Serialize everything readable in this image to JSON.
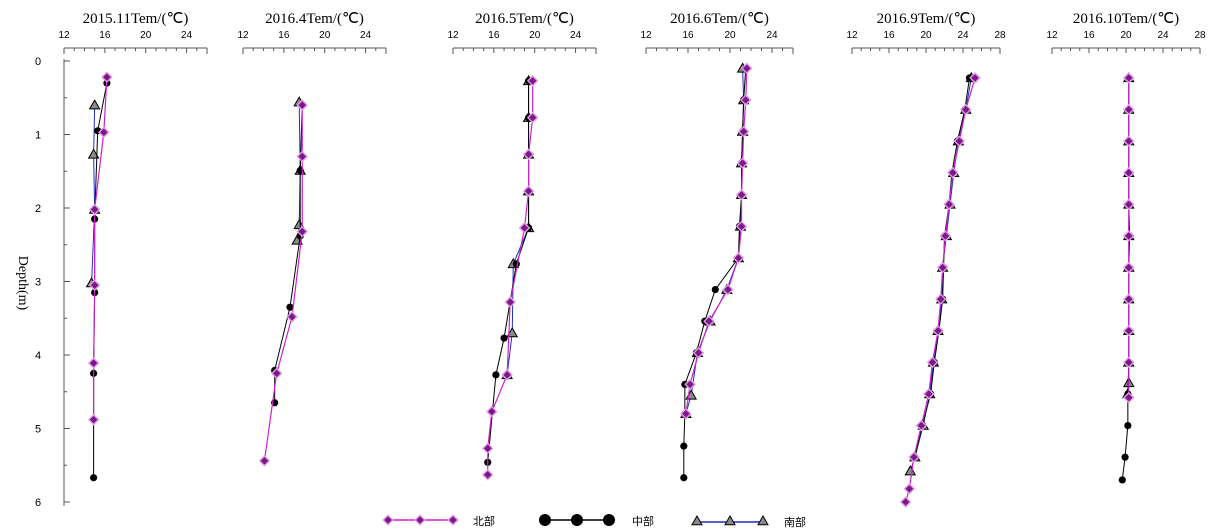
{
  "colors": {
    "north": "#cc22cc",
    "north_fill": "#7a1a8a",
    "middle": "#000000",
    "south": "#1f2fbf",
    "south_fill": "#8a8a8a",
    "axis": "#555555"
  },
  "y_axis": {
    "label": "Depth(m)",
    "ticks": [
      "0",
      "1",
      "2",
      "3",
      "4",
      "5",
      "6"
    ],
    "range": [
      0,
      6
    ]
  },
  "legend": {
    "north": "北部",
    "middle": "中部",
    "south": "南部"
  },
  "chart_data": [
    {
      "type": "line",
      "title": "2015.11Tem/(℃)",
      "xlim": [
        12,
        26
      ],
      "xticks": [
        "12",
        "16",
        "20",
        "24"
      ],
      "series": [
        {
          "name": "北部",
          "marker": "diamond",
          "points": [
            [
              16.2,
              0.22
            ],
            [
              15.9,
              0.97
            ],
            [
              15.0,
              2.02
            ],
            [
              15.0,
              3.05
            ],
            [
              14.9,
              4.11
            ],
            [
              14.9,
              4.88
            ]
          ]
        },
        {
          "name": "中部",
          "marker": "circle",
          "points": [
            [
              16.2,
              0.3
            ],
            [
              15.3,
              0.95
            ],
            [
              15.0,
              2.15
            ],
            [
              15.0,
              3.15
            ],
            [
              14.9,
              4.25
            ],
            [
              14.9,
              5.67
            ]
          ]
        },
        {
          "name": "南部",
          "marker": "triangle",
          "points": [
            [
              15.0,
              0.6
            ],
            [
              14.9,
              1.27
            ],
            [
              15.0,
              2.02
            ],
            [
              14.7,
              3.02
            ]
          ]
        }
      ]
    },
    {
      "type": "line",
      "title": "2016.4Tem/(℃)",
      "xlim": [
        12,
        26
      ],
      "xticks": [
        "12",
        "16",
        "20",
        "24"
      ],
      "series": [
        {
          "name": "北部",
          "marker": "diamond",
          "points": [
            [
              17.8,
              0.6
            ],
            [
              17.8,
              1.3
            ],
            [
              17.8,
              2.32
            ],
            [
              16.8,
              3.48
            ],
            [
              15.3,
              4.25
            ],
            [
              14.1,
              5.44
            ]
          ]
        },
        {
          "name": "中部",
          "marker": "circle",
          "points": [
            [
              17.8,
              0.6
            ],
            [
              17.6,
              1.49
            ],
            [
              17.6,
              2.38
            ],
            [
              16.6,
              3.35
            ],
            [
              15.1,
              4.21
            ],
            [
              15.1,
              4.65
            ]
          ]
        },
        {
          "name": "南部",
          "marker": "triangle",
          "points": [
            [
              17.5,
              0.56
            ],
            [
              17.6,
              1.49
            ],
            [
              17.5,
              2.23
            ],
            [
              17.3,
              2.44
            ]
          ]
        }
      ]
    },
    {
      "type": "line",
      "title": "2016.5Tem/(℃)",
      "xlim": [
        12,
        26
      ],
      "xticks": [
        "12",
        "16",
        "20",
        "24"
      ],
      "series": [
        {
          "name": "北部",
          "marker": "diamond",
          "points": [
            [
              19.8,
              0.27
            ],
            [
              19.8,
              0.77
            ],
            [
              19.4,
              1.27
            ],
            [
              19.4,
              1.77
            ],
            [
              19.0,
              2.27
            ],
            [
              17.6,
              3.28
            ],
            [
              17.3,
              4.27
            ],
            [
              15.8,
              4.77
            ],
            [
              15.4,
              5.27
            ],
            [
              15.4,
              5.63
            ]
          ]
        },
        {
          "name": "中部",
          "marker": "circle",
          "points": [
            [
              19.4,
              0.27
            ],
            [
              19.4,
              0.77
            ],
            [
              19.4,
              2.27
            ],
            [
              18.2,
              2.76
            ],
            [
              17.0,
              3.77
            ],
            [
              16.2,
              4.27
            ],
            [
              15.4,
              5.46
            ]
          ]
        },
        {
          "name": "南部",
          "marker": "triangle",
          "points": [
            [
              19.4,
              0.27
            ],
            [
              19.4,
              0.77
            ],
            [
              19.4,
              1.27
            ],
            [
              19.4,
              1.77
            ],
            [
              19.4,
              2.27
            ],
            [
              17.9,
              2.76
            ],
            [
              17.8,
              3.7
            ],
            [
              17.3,
              4.27
            ]
          ]
        }
      ]
    },
    {
      "type": "line",
      "title": "2016.6Tem/(℃)",
      "xlim": [
        12,
        26
      ],
      "xticks": [
        "12",
        "16",
        "20",
        "24"
      ],
      "series": [
        {
          "name": "北部",
          "marker": "diamond",
          "points": [
            [
              21.6,
              0.1
            ],
            [
              21.5,
              0.53
            ],
            [
              21.3,
              0.96
            ],
            [
              21.2,
              1.39
            ],
            [
              21.1,
              1.82
            ],
            [
              21.1,
              2.25
            ],
            [
              20.8,
              2.68
            ],
            [
              19.8,
              3.11
            ],
            [
              18.0,
              3.54
            ],
            [
              17.0,
              3.97
            ],
            [
              16.2,
              4.4
            ],
            [
              15.8,
              4.8
            ]
          ]
        },
        {
          "name": "中部",
          "marker": "circle",
          "points": [
            [
              21.5,
              0.1
            ],
            [
              21.3,
              0.53
            ],
            [
              21.2,
              0.96
            ],
            [
              21.1,
              1.39
            ],
            [
              21.1,
              1.82
            ],
            [
              20.9,
              2.25
            ],
            [
              20.8,
              2.68
            ],
            [
              18.6,
              3.11
            ],
            [
              17.6,
              3.54
            ],
            [
              16.8,
              3.97
            ],
            [
              15.7,
              4.4
            ],
            [
              15.7,
              4.8
            ],
            [
              15.6,
              5.24
            ],
            [
              15.6,
              5.67
            ]
          ]
        },
        {
          "name": "南部",
          "marker": "triangle",
          "points": [
            [
              21.2,
              0.1
            ],
            [
              21.3,
              0.53
            ],
            [
              21.2,
              0.96
            ],
            [
              21.1,
              1.39
            ],
            [
              21.1,
              1.82
            ],
            [
              21.0,
              2.25
            ],
            [
              20.8,
              2.68
            ],
            [
              19.7,
              3.11
            ],
            [
              18.1,
              3.54
            ],
            [
              16.9,
              3.97
            ],
            [
              16.3,
              4.55
            ],
            [
              15.8,
              4.8
            ]
          ]
        }
      ]
    },
    {
      "type": "line",
      "title": "2016.9Tem/(℃)",
      "xlim": [
        12,
        28
      ],
      "xticks": [
        "12",
        "16",
        "20",
        "24",
        "28"
      ],
      "series": [
        {
          "name": "北部",
          "marker": "diamond",
          "points": [
            [
              25.3,
              0.23
            ],
            [
              24.3,
              0.66
            ],
            [
              23.6,
              1.09
            ],
            [
              22.9,
              1.52
            ],
            [
              22.5,
              1.95
            ],
            [
              22.1,
              2.38
            ],
            [
              21.8,
              2.81
            ],
            [
              21.6,
              3.24
            ],
            [
              21.3,
              3.67
            ],
            [
              20.7,
              4.1
            ],
            [
              20.3,
              4.53
            ],
            [
              19.5,
              4.96
            ],
            [
              18.7,
              5.39
            ],
            [
              18.2,
              5.82
            ],
            [
              17.8,
              6.0
            ]
          ]
        },
        {
          "name": "中部",
          "marker": "circle",
          "points": [
            [
              24.7,
              0.23
            ],
            [
              24.2,
              0.66
            ],
            [
              23.4,
              1.09
            ],
            [
              22.8,
              1.52
            ],
            [
              22.5,
              1.95
            ],
            [
              22.0,
              2.38
            ],
            [
              21.9,
              2.81
            ],
            [
              21.8,
              3.24
            ],
            [
              21.4,
              3.67
            ],
            [
              20.9,
              4.1
            ],
            [
              20.5,
              4.53
            ],
            [
              19.6,
              4.96
            ],
            [
              18.8,
              5.39
            ]
          ]
        },
        {
          "name": "南部",
          "marker": "triangle",
          "points": [
            [
              24.9,
              0.23
            ],
            [
              24.3,
              0.66
            ],
            [
              23.5,
              1.09
            ],
            [
              23.0,
              1.52
            ],
            [
              22.6,
              1.95
            ],
            [
              22.2,
              2.38
            ],
            [
              21.8,
              2.81
            ],
            [
              21.7,
              3.24
            ],
            [
              21.3,
              3.67
            ],
            [
              20.8,
              4.1
            ],
            [
              20.4,
              4.53
            ],
            [
              19.7,
              4.96
            ],
            [
              18.8,
              5.39
            ],
            [
              18.3,
              5.58
            ]
          ]
        }
      ]
    },
    {
      "type": "line",
      "title": "2016.10Tem/(℃)",
      "xlim": [
        12,
        28
      ],
      "xticks": [
        "12",
        "16",
        "20",
        "24",
        "28"
      ],
      "series": [
        {
          "name": "北部",
          "marker": "diamond",
          "points": [
            [
              20.3,
              0.23
            ],
            [
              20.3,
              0.66
            ],
            [
              20.3,
              1.09
            ],
            [
              20.3,
              1.52
            ],
            [
              20.3,
              1.95
            ],
            [
              20.3,
              2.38
            ],
            [
              20.3,
              2.81
            ],
            [
              20.3,
              3.24
            ],
            [
              20.3,
              3.67
            ],
            [
              20.3,
              4.1
            ],
            [
              20.3,
              4.58
            ]
          ]
        },
        {
          "name": "中部",
          "marker": "circle",
          "points": [
            [
              20.3,
              0.23
            ],
            [
              20.3,
              0.66
            ],
            [
              20.3,
              1.09
            ],
            [
              20.3,
              1.52
            ],
            [
              20.3,
              1.95
            ],
            [
              20.4,
              2.38
            ],
            [
              20.3,
              2.81
            ],
            [
              20.3,
              3.24
            ],
            [
              20.3,
              3.67
            ],
            [
              20.3,
              4.1
            ],
            [
              20.2,
              4.53
            ],
            [
              20.2,
              4.96
            ],
            [
              19.9,
              5.39
            ],
            [
              19.6,
              5.7
            ]
          ]
        },
        {
          "name": "南部",
          "marker": "triangle",
          "points": [
            [
              20.3,
              0.23
            ],
            [
              20.3,
              0.66
            ],
            [
              20.3,
              1.09
            ],
            [
              20.3,
              1.52
            ],
            [
              20.3,
              1.95
            ],
            [
              20.3,
              2.38
            ],
            [
              20.3,
              2.81
            ],
            [
              20.3,
              3.24
            ],
            [
              20.3,
              3.67
            ],
            [
              20.3,
              4.1
            ],
            [
              20.3,
              4.38
            ],
            [
              20.2,
              4.53
            ]
          ]
        }
      ]
    }
  ]
}
